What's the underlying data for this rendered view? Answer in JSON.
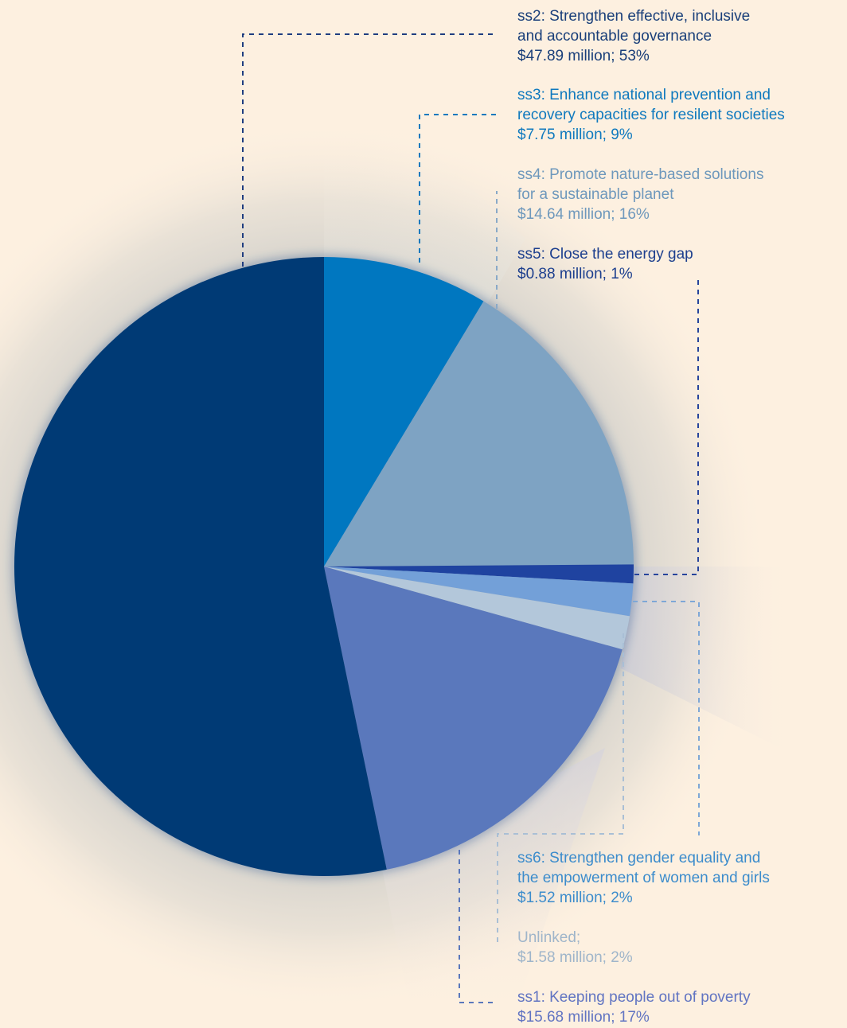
{
  "chart_data": {
    "type": "pie",
    "start_angle_deg": 0,
    "direction": "clockwise",
    "slices": [
      {
        "key": "ss3",
        "label_lines": [
          "ss3: Enhance national prevention and",
          "recovery capacities for resilent societies"
        ],
        "value_text": "$7.75 million; 9%",
        "value_musd": 7.75,
        "percent": 9,
        "color": "#0077c0",
        "text_color": "#0f79be"
      },
      {
        "key": "ss4",
        "label_lines": [
          "ss4: Promote nature-based solutions",
          "for a sustainable planet"
        ],
        "value_text": "$14.64 million; 16%",
        "value_musd": 14.64,
        "percent": 16,
        "color": "#7ea3c3",
        "text_color": "#6e98bc"
      },
      {
        "key": "ss5",
        "label_lines": [
          "ss5: Close the energy gap"
        ],
        "value_text": "$0.88 million; 1%",
        "value_musd": 0.88,
        "percent": 1,
        "color": "#1f43a0",
        "text_color": "#1d3f8e"
      },
      {
        "key": "ss6",
        "label_lines": [
          "ss6: Strengthen gender equality and",
          "the empowerment of women and girls"
        ],
        "value_text": "$1.52 million; 2%",
        "value_musd": 1.52,
        "percent": 2,
        "color": "#73a0d8",
        "text_color": "#3c8ccc"
      },
      {
        "key": "unlinked",
        "label_lines": [
          "Unlinked;"
        ],
        "value_text": "$1.58 million; 2%",
        "value_musd": 1.58,
        "percent": 2,
        "color": "#b3c7da",
        "text_color": "#9fb5ca"
      },
      {
        "key": "ss1",
        "label_lines": [
          "ss1: Keeping people out of poverty"
        ],
        "value_text": "$15.68 million; 17%",
        "value_musd": 15.68,
        "percent": 17,
        "color": "#5a78bc",
        "text_color": "#6174c2"
      },
      {
        "key": "ss2",
        "label_lines": [
          "ss2: Strengthen effective, inclusive",
          "and accountable governance"
        ],
        "value_text": "$47.89 million; 53%",
        "value_musd": 47.89,
        "percent": 53,
        "color": "#003a75",
        "text_color": "#1a3f7a"
      }
    ]
  }
}
